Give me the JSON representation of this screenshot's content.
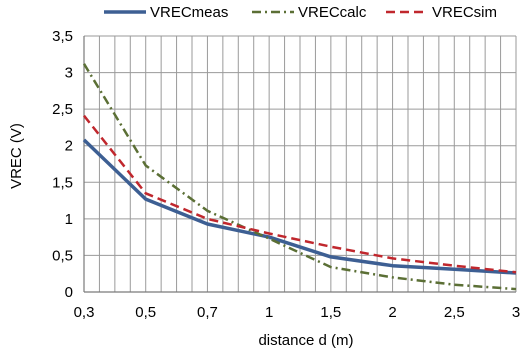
{
  "chart_data": {
    "type": "line",
    "title": "",
    "xlabel": "distance d (m)",
    "ylabel": "VREC (V)",
    "x_tick_labels": [
      "0,3",
      "0,5",
      "0,7",
      "1",
      "1,5",
      "2",
      "2,5",
      "3"
    ],
    "y_tick_labels": [
      "0",
      "0,5",
      "1",
      "1,5",
      "2",
      "2,5",
      "3",
      "3,5"
    ],
    "y_ticks": [
      0,
      0.5,
      1,
      1.5,
      2,
      2.5,
      3,
      3.5
    ],
    "ylim": [
      0,
      3.5
    ],
    "x_axis_kind": "category",
    "grid": {
      "vertical": true,
      "vertical_minor_per_category": 4,
      "horizontal": true
    },
    "legend_position": "top",
    "series": [
      {
        "name": "VRECmeas",
        "style": "solid",
        "color": "#3d5f93",
        "x": [
          "0,3",
          "0,5",
          "0,7",
          "1",
          "1,5",
          "2",
          "2,5",
          "3"
        ],
        "y": [
          2.08,
          1.27,
          0.93,
          0.75,
          0.48,
          0.36,
          0.31,
          0.26
        ]
      },
      {
        "name": "VRECcalc",
        "style": "dash-dot",
        "color": "#5b6f35",
        "x": [
          "0,3",
          "0,5",
          "0,7",
          "1",
          "1,5",
          "2",
          "2,5",
          "3"
        ],
        "y": [
          3.12,
          1.73,
          1.11,
          0.73,
          0.34,
          0.2,
          0.1,
          0.04
        ]
      },
      {
        "name": "VRECsim",
        "style": "dashed",
        "color": "#c0272d",
        "x": [
          "0,3",
          "0,5",
          "0,7",
          "1",
          "1,5",
          "2",
          "2,5",
          "3"
        ],
        "y": [
          2.41,
          1.35,
          1.0,
          0.8,
          0.62,
          0.46,
          0.36,
          0.27
        ]
      }
    ]
  }
}
